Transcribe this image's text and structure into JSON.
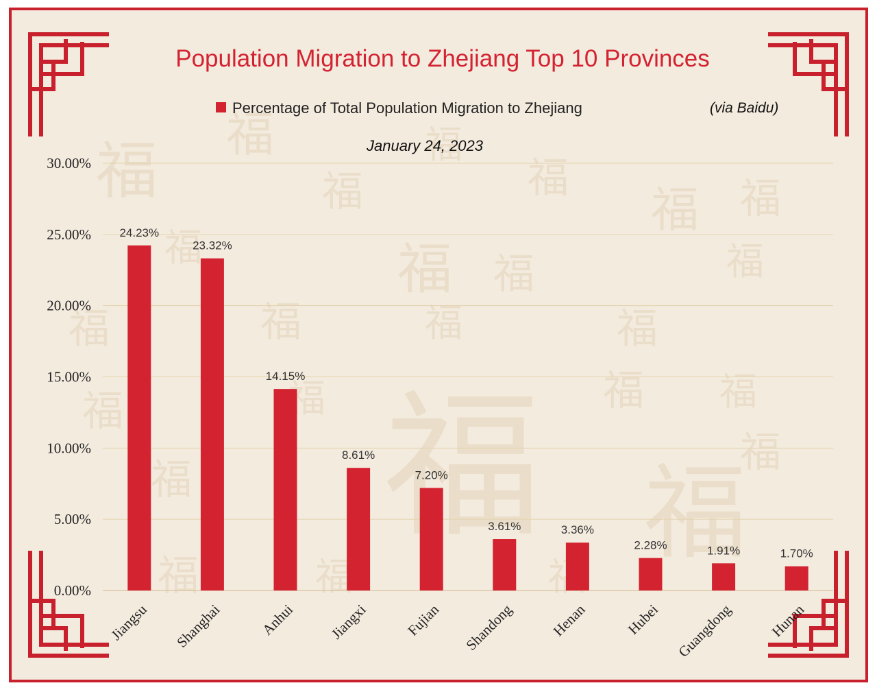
{
  "chart_data": {
    "type": "bar",
    "title": "Population Migration to Zhejiang Top 10 Provinces",
    "subtitle": "January 24, 2023",
    "source": "(via Baidu)",
    "categories": [
      "Jiangsu",
      "Shanghai",
      "Anhui",
      "Jiangxi",
      "Fujian",
      "Shandong",
      "Henan",
      "Hubei",
      "Guangdong",
      "Hunan"
    ],
    "series": [
      {
        "name": "Percentage of Total Population Migration to Zhejiang",
        "values": [
          24.23,
          23.32,
          14.15,
          8.61,
          7.2,
          3.61,
          3.36,
          2.28,
          1.91,
          1.7
        ],
        "data_labels": [
          "24.23%",
          "23.32%",
          "14.15%",
          "8.61%",
          "7.20%",
          "3.61%",
          "3.36%",
          "2.28%",
          "1.91%",
          "1.70%"
        ]
      }
    ],
    "yticks": [
      0,
      5,
      10,
      15,
      20,
      25,
      30
    ],
    "ytick_labels": [
      "0.00%",
      "5.00%",
      "10.00%",
      "15.00%",
      "20.00%",
      "25.00%",
      "30.00%"
    ],
    "ylim": [
      0,
      30
    ],
    "xlabel": "",
    "ylabel": "",
    "grid": true,
    "legend_position": "top",
    "colors": {
      "bar": "#d32331",
      "title": "#d32331",
      "border": "#c8202c",
      "background": "#f4ebdf"
    }
  }
}
